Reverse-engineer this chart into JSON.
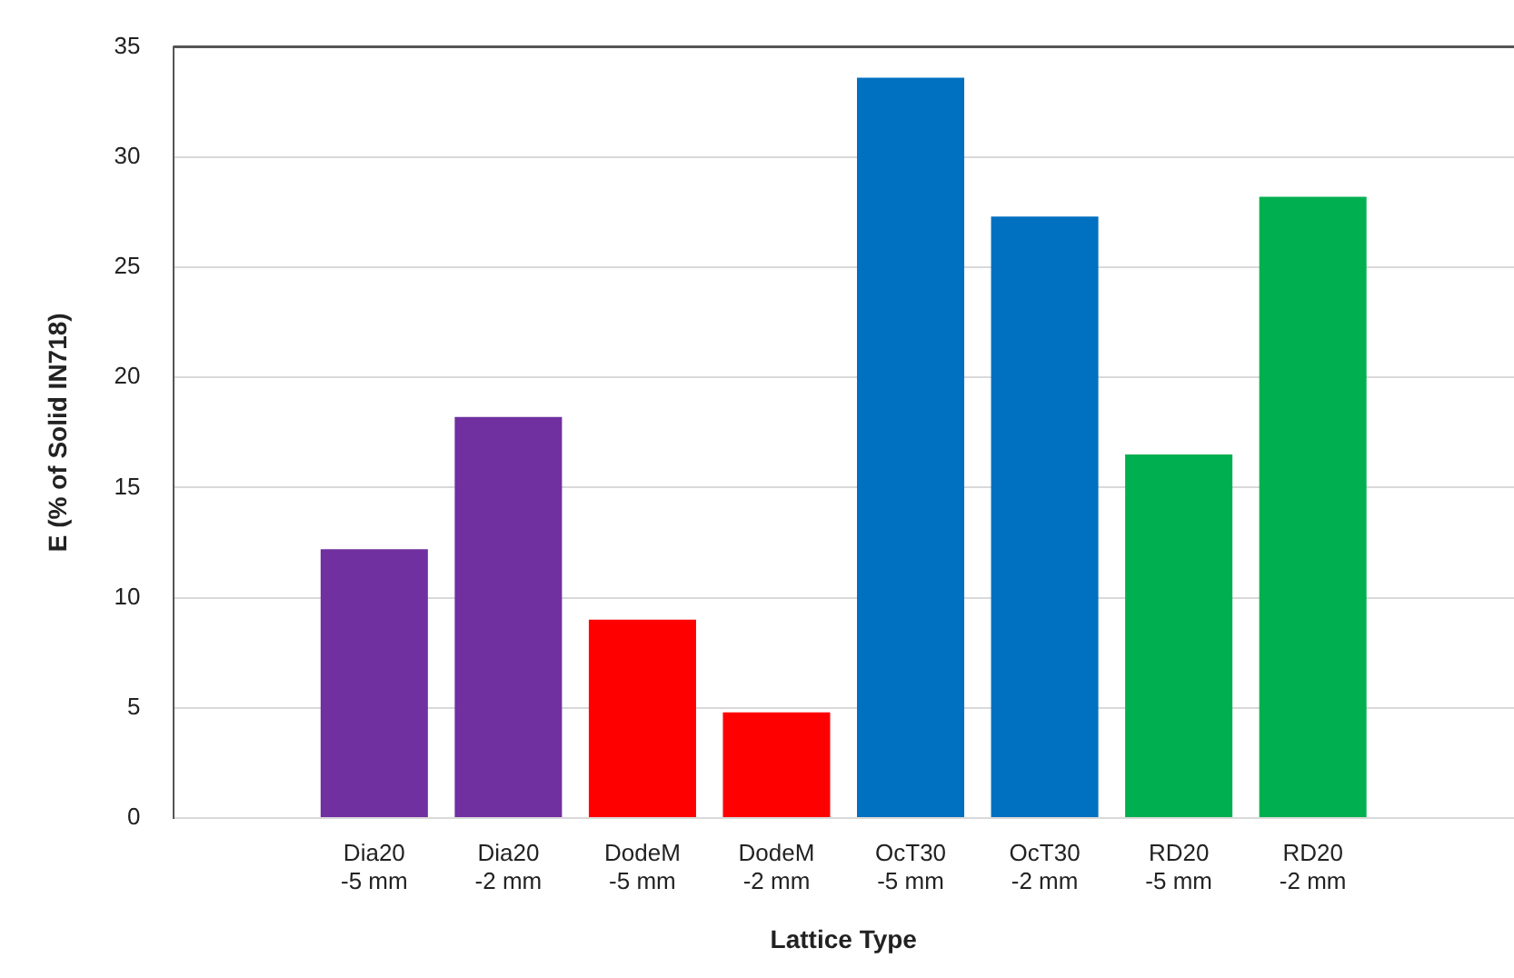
{
  "chart_data": {
    "type": "bar",
    "xlabel": "Lattice Type",
    "ylabel": "E (% of Solid IN718)",
    "categories": [
      null,
      "Dia20\n-5 mm",
      "Dia20\n-2 mm",
      "DodeM\n-5 mm",
      "DodeM\n-2 mm",
      "OcT30\n-5 mm",
      "OcT30\n-2 mm",
      "RD20\n-5 mm",
      "RD20\n-2 mm",
      null
    ],
    "values": [
      null,
      12.2,
      18.2,
      9.0,
      4.8,
      33.6,
      27.3,
      16.5,
      28.2,
      null
    ],
    "colors": [
      "#7030a0",
      "#7030a0",
      "#7030a0",
      "#ff0000",
      "#ff0000",
      "#0070c0",
      "#0070c0",
      "#00b050",
      "#00b050",
      "#00b050"
    ],
    "ylim": [
      0,
      35
    ],
    "yticks": [
      0,
      5,
      10,
      15,
      20,
      25,
      30,
      35
    ],
    "grid": "y",
    "legend": false
  }
}
